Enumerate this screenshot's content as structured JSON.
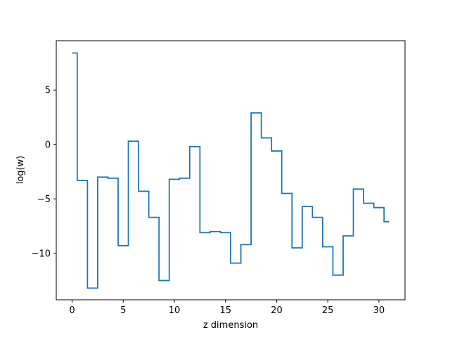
{
  "chart_data": {
    "type": "line",
    "step": "mid",
    "xlabel": "z dimension",
    "ylabel": "log(w)",
    "xlim": [
      -1.55,
      32.55
    ],
    "ylim": [
      -14.27,
      9.53
    ],
    "xticks": [
      0,
      5,
      10,
      15,
      20,
      25,
      30
    ],
    "xtick_labels": [
      "0",
      "5",
      "10",
      "15",
      "20",
      "25",
      "30"
    ],
    "yticks": [
      -10,
      -5,
      0,
      5
    ],
    "ytick_labels": [
      "−10",
      "−5",
      "0",
      "5"
    ],
    "grid": false,
    "series": [
      {
        "color": "#1f77b4",
        "x": [
          0,
          1,
          2,
          3,
          4,
          5,
          6,
          7,
          8,
          9,
          10,
          11,
          12,
          13,
          14,
          15,
          16,
          17,
          18,
          19,
          20,
          21,
          22,
          23,
          24,
          25,
          26,
          27,
          28,
          29,
          30,
          31
        ],
        "y": [
          8.4,
          -3.3,
          -13.2,
          -3.0,
          -3.1,
          -9.3,
          0.3,
          -4.3,
          -6.7,
          -12.5,
          -3.2,
          -3.1,
          -0.2,
          -8.1,
          -8.0,
          -8.1,
          -10.9,
          -9.2,
          2.9,
          0.6,
          -0.6,
          -4.5,
          -9.5,
          -5.7,
          -6.7,
          -9.4,
          -12.0,
          -8.4,
          -4.1,
          -5.4,
          -5.8,
          -7.1
        ]
      }
    ]
  }
}
